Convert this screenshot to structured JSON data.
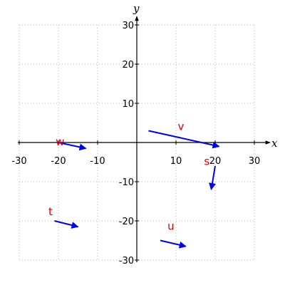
{
  "chart_data": {
    "type": "vector-plot",
    "xlabel": "x",
    "ylabel": "y",
    "xlim": [
      -30,
      30
    ],
    "ylim": [
      -30,
      30
    ],
    "xticks": [
      -30,
      -20,
      -10,
      10,
      20,
      30
    ],
    "yticks": [
      30,
      20,
      10,
      -10,
      -20,
      -30
    ],
    "grid": true,
    "vector_color": "#0000ee",
    "label_color": "#dd0000",
    "vectors": [
      {
        "name": "v",
        "label": "v",
        "start": [
          3,
          3
        ],
        "end": [
          21,
          -1
        ]
      },
      {
        "name": "w",
        "label": "w",
        "start": [
          -20,
          0
        ],
        "end": [
          -13,
          -1.5
        ]
      },
      {
        "name": "s",
        "label": "s",
        "start": [
          20,
          -6
        ],
        "end": [
          19,
          -12
        ]
      },
      {
        "name": "t",
        "label": "t",
        "start": [
          -21,
          -20
        ],
        "end": [
          -15,
          -21.5
        ]
      },
      {
        "name": "u",
        "label": "u",
        "start": [
          6,
          -25
        ],
        "end": [
          12.5,
          -26.5
        ]
      }
    ]
  }
}
